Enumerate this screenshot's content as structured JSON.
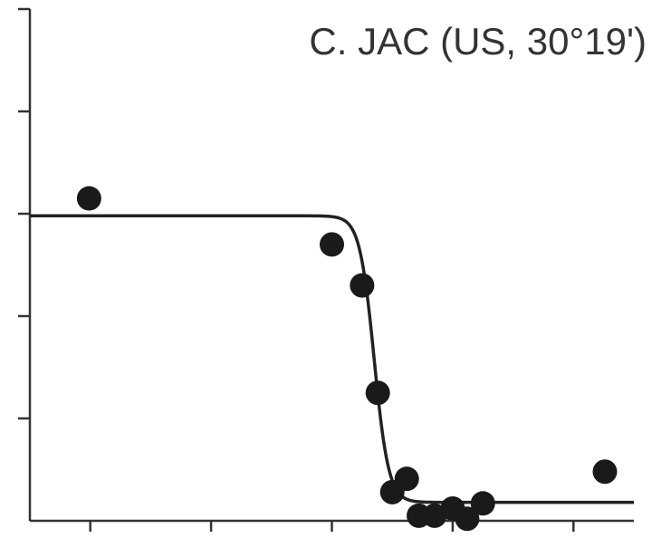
{
  "chart_data": {
    "type": "scatter",
    "title": "C. JAC (US, 30°19')",
    "xlabel": "",
    "ylabel": "",
    "x_ticks_count": 5,
    "y_ticks_count": 5,
    "xlim": [
      0,
      5
    ],
    "ylim": [
      0,
      5
    ],
    "grid": false,
    "legend": "none",
    "points": [
      {
        "x": 0.49,
        "y": 3.15
      },
      {
        "x": 2.5,
        "y": 2.7
      },
      {
        "x": 2.75,
        "y": 2.3
      },
      {
        "x": 2.88,
        "y": 1.25
      },
      {
        "x": 3.0,
        "y": 0.28
      },
      {
        "x": 3.12,
        "y": 0.41
      },
      {
        "x": 3.22,
        "y": 0.05
      },
      {
        "x": 3.35,
        "y": 0.05
      },
      {
        "x": 3.5,
        "y": 0.12
      },
      {
        "x": 3.62,
        "y": 0.02
      },
      {
        "x": 3.75,
        "y": 0.17
      },
      {
        "x": 4.76,
        "y": 0.48
      }
    ],
    "fit_curve": {
      "model": "logistic",
      "upper": 2.98,
      "lower": 0.18,
      "midpoint": 2.85,
      "scale": 0.06,
      "x_range": [
        0,
        5
      ]
    },
    "colors": {
      "points": "#1a1a1a",
      "curve": "#222222",
      "axes": "#333333"
    }
  }
}
